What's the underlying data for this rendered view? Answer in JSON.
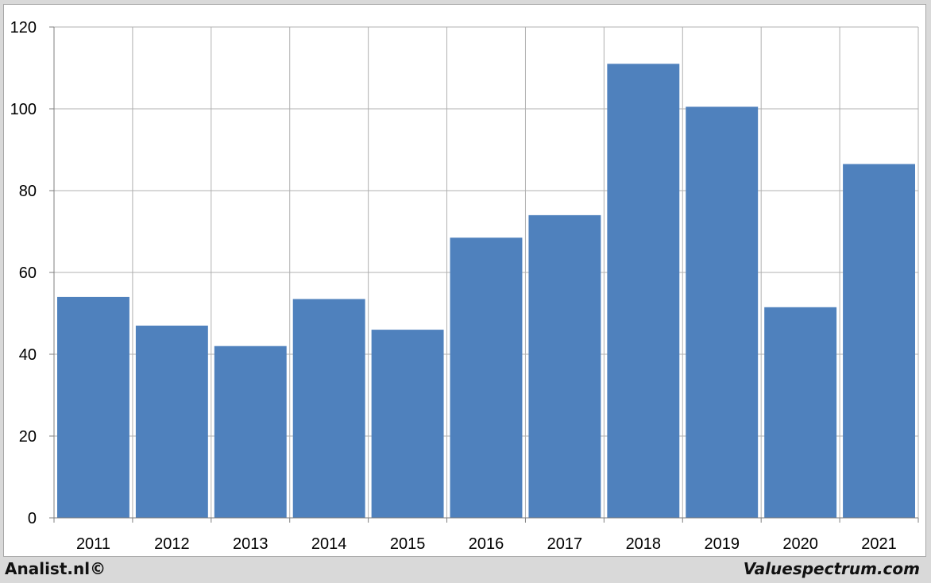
{
  "chart_data": {
    "type": "bar",
    "categories": [
      "2011",
      "2012",
      "2013",
      "2014",
      "2015",
      "2016",
      "2017",
      "2018",
      "2019",
      "2020",
      "2021"
    ],
    "values": [
      54,
      47,
      42,
      53.5,
      46,
      68.5,
      74,
      111,
      100.5,
      51.5,
      86.5
    ],
    "ylim": [
      0,
      120
    ],
    "yticks": [
      0,
      20,
      40,
      60,
      80,
      100,
      120
    ],
    "grid": true,
    "bar_color": "#4f81bd",
    "grid_color": "#b0b0b0"
  },
  "footer": {
    "left": "Analist.nl©",
    "right": "Valuespectrum.com"
  }
}
